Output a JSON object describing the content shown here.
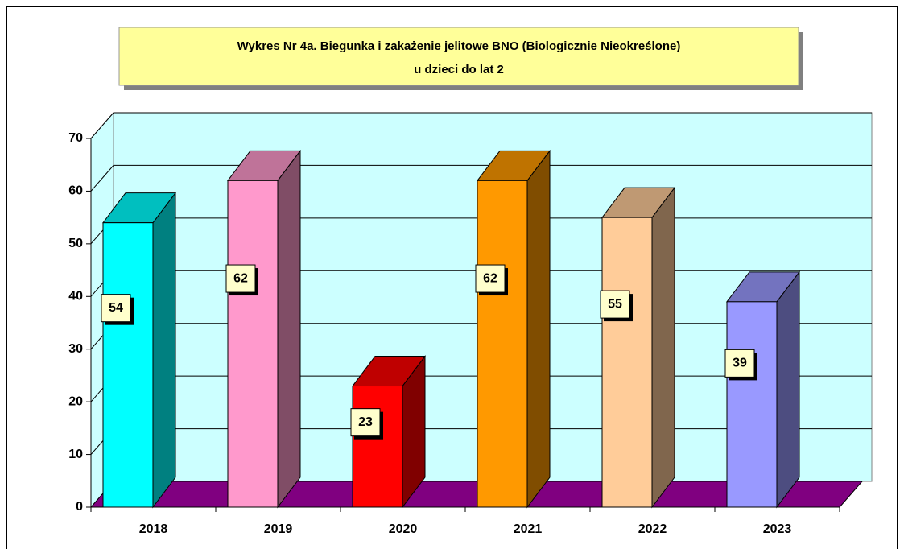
{
  "chart_data": {
    "type": "bar",
    "title": "Wykres Nr 4a. Biegunka i zakażenie jelitowe BNO (Biologicznie Nieokreślone)",
    "subtitle": "u dzieci do lat 2",
    "categories": [
      "2018",
      "2019",
      "2020",
      "2021",
      "2022",
      "2023"
    ],
    "values": [
      54,
      62,
      23,
      62,
      55,
      39
    ],
    "colors": [
      "#00ffff",
      "#ff99cc",
      "#ff0000",
      "#ff9900",
      "#ffcc99",
      "#9999ff"
    ],
    "ylim": [
      0,
      70
    ],
    "yticks": [
      0,
      10,
      20,
      30,
      40,
      50,
      60,
      70
    ],
    "grid": true
  }
}
